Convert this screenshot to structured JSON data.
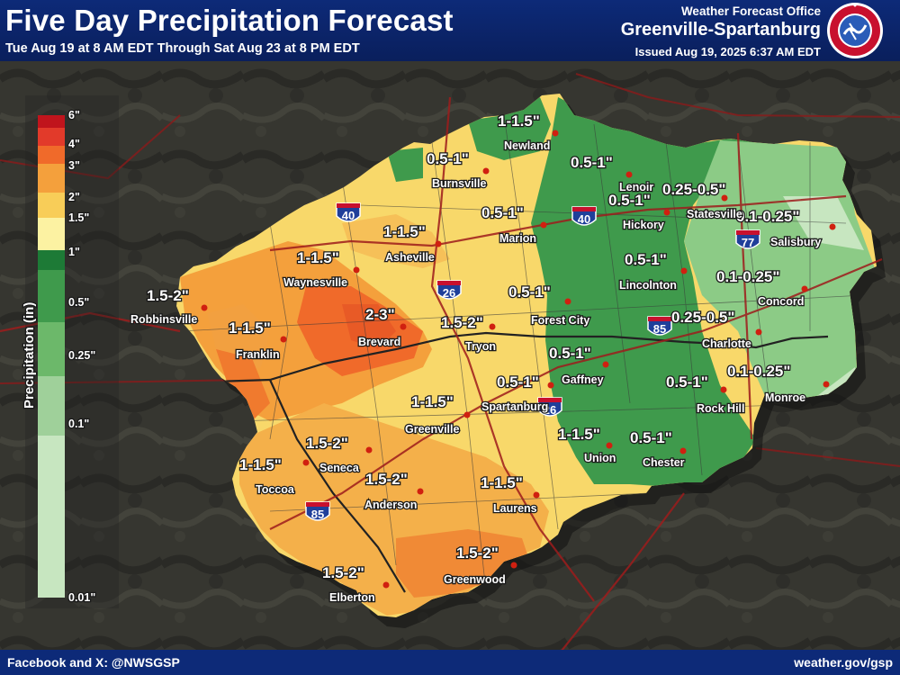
{
  "header": {
    "title": "Five Day Precipitation Forecast",
    "subtitle": "Tue Aug 19 at 8 AM EDT Through Sat Aug 23 at 8 PM EDT",
    "office_label": "Weather Forecast Office",
    "office_name": "Greenville-Spartanburg",
    "issued": "Issued Aug 19, 2025 6:37 AM EDT",
    "logo_text": "NATIONAL WEATHER SERVICE"
  },
  "legend": {
    "title": "Precipitation (in)",
    "ticks": [
      "6\"",
      "4\"",
      "3\"",
      "2\"",
      "1.5\"",
      "1\"",
      "0.5\"",
      "0.25\"",
      "0.1\"",
      "0.01\""
    ],
    "colors": [
      "#c0141c",
      "#e23a2a",
      "#f06a2a",
      "#f4a03c",
      "#f8cd58",
      "#fcf2a2",
      "#1d7a36",
      "#3f9a4c",
      "#6cb86a",
      "#9fd09a",
      "#c7e6c0"
    ]
  },
  "amounts": [
    "1-1.5\"",
    "0.5-1\"",
    "0.5-1\"",
    "0.5-1\"",
    "0.25-0.5\"",
    "0.5-1\"",
    "0.1-0.25\"",
    "1-1.5\"",
    "1-1.5\"",
    "0.5-1\"",
    "0.1-0.25\"",
    "1.5-2\"",
    "0.5-1\"",
    "2-3\"",
    "1.5-2\"",
    "1-1.5\"",
    "0.25-0.5\"",
    "0.5-1\"",
    "0.1-0.25\"",
    "0.5-1\"",
    "0.5-1\"",
    "1-1.5\"",
    "1-1.5\"",
    "0.5-1\"",
    "1.5-2\"",
    "1-1.5\"",
    "1.5-2\"",
    "1-1.5\"",
    "1.5-2\"",
    "1.5-2\""
  ],
  "cities": [
    "Newland",
    "Lenoir",
    "Burnsville",
    "Hickory",
    "Statesville",
    "Marion",
    "Salisbury",
    "Asheville",
    "Waynesville",
    "Lincolnton",
    "Concord",
    "Robbinsville",
    "Forest City",
    "Brevard",
    "Tryon",
    "Franklin",
    "Charlotte",
    "Gaffney",
    "Monroe",
    "Spartanburg",
    "Rock Hill",
    "Greenville",
    "Union",
    "Chester",
    "Seneca",
    "Toccoa",
    "Anderson",
    "Laurens",
    "Greenwood",
    "Elberton"
  ],
  "interstates": [
    "40",
    "40",
    "26",
    "77",
    "85",
    "26",
    "85"
  ],
  "colors": {
    "header_bg": "#0d2a78",
    "text": "#ffffff",
    "city_dot": "#d02010"
  },
  "footer": {
    "social": "Facebook and X: @NWSGSP",
    "website": "weather.gov/gsp"
  }
}
